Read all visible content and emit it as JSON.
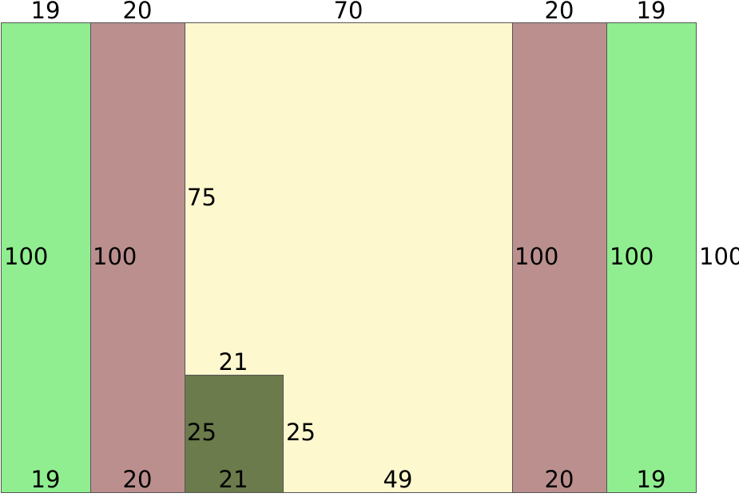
{
  "colors": {
    "outer": "#90EE90",
    "inner": "#BC8F8F",
    "center": "#FDF8CE",
    "block": "#6B7B4B"
  },
  "top_labels": [
    "19",
    "20",
    "70",
    "20",
    "19"
  ],
  "side_labels": {
    "green_left": "100",
    "mauve_left": "100",
    "center_upper": "75",
    "mauve_right": "100",
    "green_right": "100",
    "outer_right": "100"
  },
  "block_labels": {
    "top": "21",
    "left": "25",
    "right": "25"
  },
  "bottom_labels": [
    "19",
    "20",
    "21",
    "49",
    "20",
    "19"
  ]
}
